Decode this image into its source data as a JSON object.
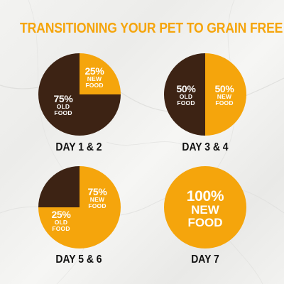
{
  "title": "TRANSITIONING YOUR PET TO GRAIN FREE",
  "colors": {
    "title": "#f5a50c",
    "new_food": "#f5a50c",
    "old_food": "#3d2314",
    "text_light": "#ffffff",
    "text_dark": "#111111"
  },
  "chart_data": [
    {
      "type": "pie",
      "day": "DAY 1 & 2",
      "slices": [
        {
          "pct": "25%",
          "line1": "NEW",
          "line2": "FOOD",
          "kind": "new",
          "value": 25
        },
        {
          "pct": "75%",
          "line1": "OLD",
          "line2": "FOOD",
          "kind": "old",
          "value": 75
        }
      ]
    },
    {
      "type": "pie",
      "day": "DAY 3 & 4",
      "slices": [
        {
          "pct": "50%",
          "line1": "NEW",
          "line2": "FOOD",
          "kind": "new",
          "value": 50
        },
        {
          "pct": "50%",
          "line1": "OLD",
          "line2": "FOOD",
          "kind": "old",
          "value": 50
        }
      ]
    },
    {
      "type": "pie",
      "day": "DAY 5 & 6",
      "slices": [
        {
          "pct": "75%",
          "line1": "NEW",
          "line2": "FOOD",
          "kind": "new",
          "value": 75
        },
        {
          "pct": "25%",
          "line1": "OLD",
          "line2": "FOOD",
          "kind": "old",
          "value": 25
        }
      ]
    },
    {
      "type": "pie",
      "day": "DAY 7",
      "slices": [
        {
          "pct": "100%",
          "line1": "NEW",
          "line2": "FOOD",
          "kind": "new",
          "value": 100
        }
      ]
    }
  ]
}
